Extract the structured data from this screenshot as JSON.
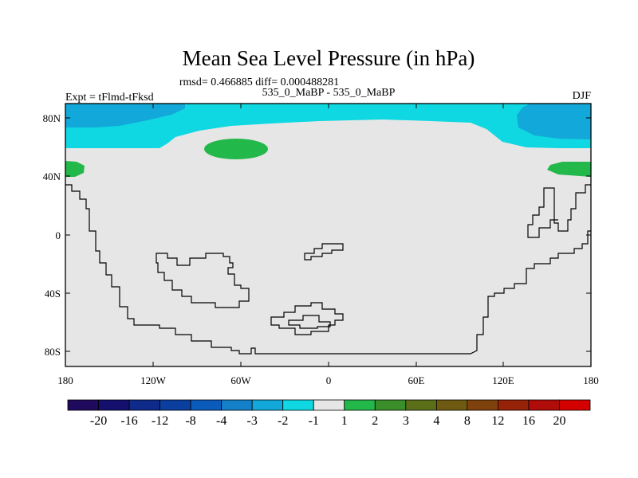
{
  "chart_data": {
    "type": "heatmap",
    "title": "Mean Sea Level Pressure (in hPa)",
    "stats_label": "rmsd= 0.466885 diff= 0.000488281",
    "left_label": "Expt = tFlmd-tFksd",
    "center_label": "535_0_MaBP - 535_0_MaBP",
    "right_label": "DJF",
    "x_ticks": [
      "180",
      "120W",
      "60W",
      "0",
      "60E",
      "120E",
      "180"
    ],
    "y_ticks": [
      "80N",
      "40N",
      "0",
      "40S",
      "80S"
    ],
    "colorbar_labels": [
      "-20",
      "-16",
      "-12",
      "-8",
      "-4",
      "-3",
      "-2",
      "-1",
      "1",
      "2",
      "3",
      "4",
      "8",
      "12",
      "16",
      "20"
    ],
    "colorbar_colors": [
      "#200a5e",
      "#15106e",
      "#0e2a8a",
      "#0a3fa0",
      "#0b5bbd",
      "#1380c9",
      "#12a8d9",
      "#10d8e2",
      "#e6e6e6",
      "#22b84a",
      "#3a8f2a",
      "#5a6f18",
      "#6e5a10",
      "#7f420c",
      "#962208",
      "#b00c0a",
      "#d40000"
    ],
    "background_color": "#e6e6e6"
  }
}
